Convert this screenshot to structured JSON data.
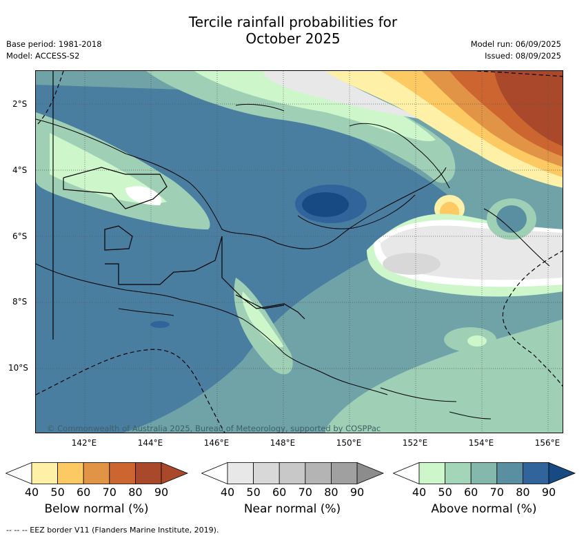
{
  "title_line1": "Tercile rainfall probabilities for",
  "title_line2": "October 2025",
  "base_period": "Base period: 1981-2018",
  "model": "Model: ACCESS-S2",
  "model_run": "Model run: 06/09/2025",
  "issued": "Issued: 08/09/2025",
  "lat_labels": [
    "2°S",
    "4°S",
    "6°S",
    "8°S",
    "10°S"
  ],
  "lon_labels": [
    "142°E",
    "144°E",
    "146°E",
    "148°E",
    "150°E",
    "152°E",
    "154°E",
    "156°E"
  ],
  "copyright": "© Commonwealth of Australia 2025, Bureau of Meteorology, supported by COSPPac",
  "colorbars": [
    {
      "title": "Below normal (%)",
      "ticks": [
        "40",
        "50",
        "60",
        "70",
        "80",
        "90"
      ],
      "colors": [
        "#fef0a6",
        "#fdc963",
        "#e19446",
        "#cd6531",
        "#a9482a",
        "#a9482a"
      ]
    },
    {
      "title": "Near normal (%)",
      "ticks": [
        "40",
        "50",
        "60",
        "70",
        "80",
        "90"
      ],
      "colors": [
        "#e8e8e8",
        "#d8d8d8",
        "#c8c8c8",
        "#b4b4b4",
        "#a0a0a0",
        "#8c8c8c"
      ]
    },
    {
      "title": "Above normal (%)",
      "ticks": [
        "40",
        "50",
        "60",
        "70",
        "80",
        "90"
      ],
      "colors": [
        "#cdf7cb",
        "#a3d6b9",
        "#84b8ac",
        "#5a8fa1",
        "#30649a",
        "#174a82"
      ]
    }
  ],
  "eez_note": "-- -- -- EEZ border V11 (Flanders Marine Institute, 2019)."
}
